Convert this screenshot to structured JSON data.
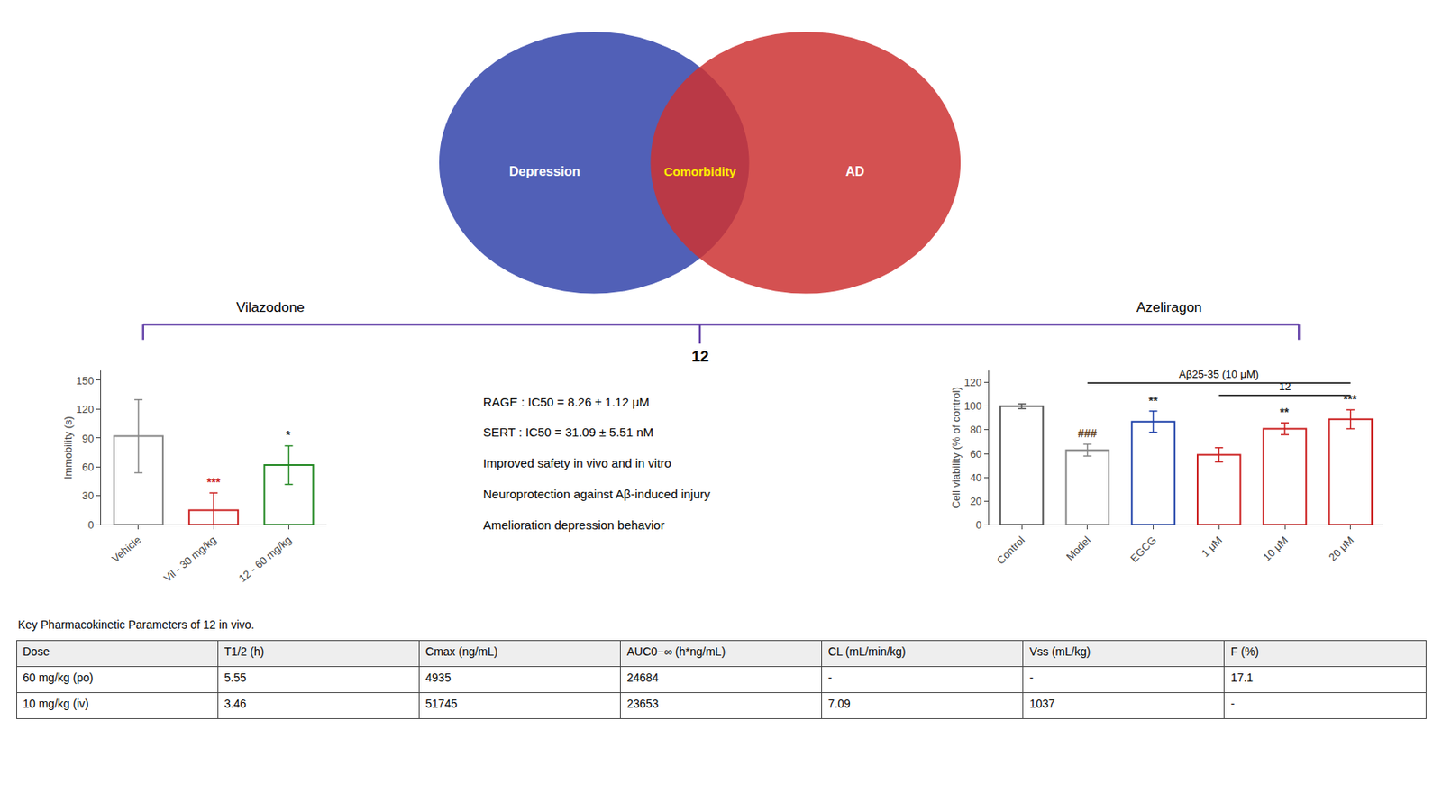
{
  "chart_data": [
    {
      "type": "bar",
      "categories": [
        "Vehicle",
        "Vil - 30 mg/kg",
        "12 - 60 mg/kg"
      ],
      "values": [
        92,
        15,
        62
      ],
      "errors": [
        38,
        18,
        20
      ],
      "colors": [
        "#888888",
        "#cc2222",
        "#228822"
      ],
      "ylabel": "Immobility (s)",
      "ylim": [
        0,
        160
      ],
      "yticks": [
        0,
        30,
        60,
        90,
        120,
        150
      ],
      "grid": false,
      "annotations": [
        {
          "text": "***",
          "category": "Vil - 30 mg/kg",
          "color": "#cc2222"
        },
        {
          "text": "*",
          "category": "12 - 60 mg/kg",
          "color": "#222222"
        }
      ]
    },
    {
      "type": "bar",
      "categories": [
        "Control",
        "Model",
        "EGCG",
        "1 μM",
        "10 μM",
        "20 μM"
      ],
      "values": [
        100,
        63,
        87,
        59,
        81,
        89
      ],
      "errors": [
        2,
        5,
        9,
        6,
        5,
        8
      ],
      "colors": [
        "#555555",
        "#888888",
        "#2244aa",
        "#cc2222",
        "#cc2222",
        "#cc2222"
      ],
      "ylabel": "Cell viability (% of control)",
      "ylim": [
        0,
        130
      ],
      "yticks": [
        0,
        20,
        40,
        60,
        80,
        100,
        120
      ],
      "grid": false,
      "annotations": [
        {
          "text": "###",
          "category": "Model",
          "color": "#664422"
        },
        {
          "text": "**",
          "category": "EGCG",
          "color": "#222222"
        },
        {
          "text": "**",
          "category": "10 μM",
          "color": "#222222"
        },
        {
          "text": "***",
          "category": "20 μM",
          "color": "#222222"
        },
        {
          "text": "12",
          "from": "1 μM",
          "to": "20 μM"
        },
        {
          "text": "Aβ25-35 (10 μM)",
          "from": "Model",
          "to": "20 μM"
        }
      ]
    }
  ],
  "venn": {
    "sets": [
      {
        "name": "Depression",
        "color": "#3344aa"
      },
      {
        "name": "AD",
        "color": "#cc3333"
      }
    ],
    "overlap": "Comorbidity"
  },
  "bracket": {
    "color": "#6644aa",
    "left": "Vilazodone",
    "right": "Azeliragon",
    "center": "12"
  },
  "annotations": [
    "RAGE : IC50 = 8.26 ± 1.12 μM",
    "SERT : IC50 = 31.09 ± 5.51 nM",
    "Improved safety in vivo and in vitro",
    "Neuroprotection against Aβ-induced injury",
    "Amelioration depression behavior"
  ],
  "table": {
    "title": "Key Pharmacokinetic Parameters of 12 in vivo.",
    "columns": [
      "Dose",
      "T1/2 (h)",
      "Cmax (ng/mL)",
      "AUC0−∞ (h*ng/mL)",
      "CL (mL/min/kg)",
      "Vss (mL/kg)",
      "F (%)"
    ],
    "rows": [
      [
        "60 mg/kg (po)",
        "5.55",
        "4935",
        "24684",
        "-",
        "-",
        "17.1"
      ],
      [
        "10 mg/kg (iv)",
        "3.46",
        "51745",
        "23653",
        "7.09",
        "1037",
        "-"
      ]
    ]
  }
}
